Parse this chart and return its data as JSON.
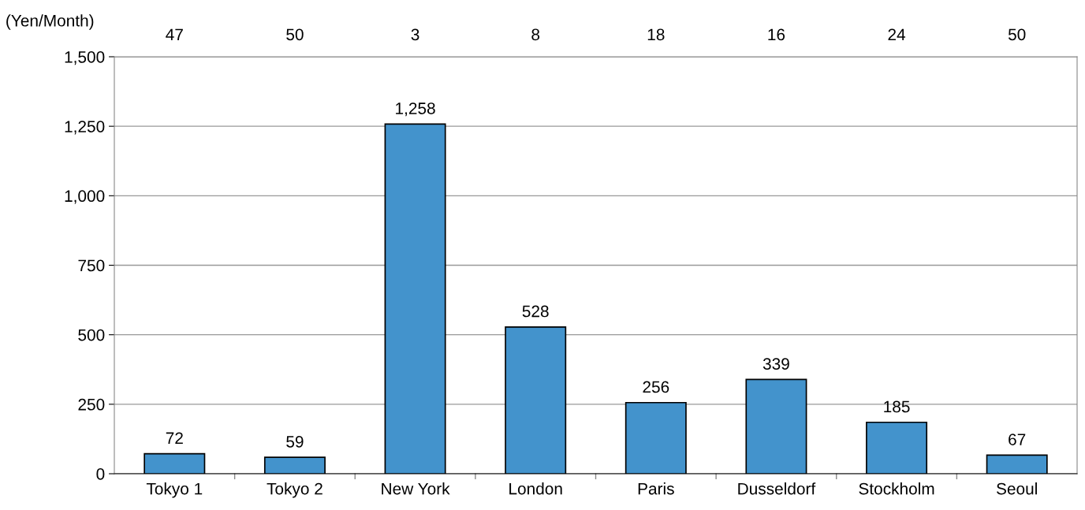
{
  "chart_data": {
    "type": "bar",
    "ylabel": "(Yen/Month)",
    "categories": [
      "Tokyo 1",
      "Tokyo 2",
      "New York",
      "London",
      "Paris",
      "Dusseldorf",
      "Stockholm",
      "Seoul"
    ],
    "values": [
      72,
      59,
      1258,
      528,
      256,
      339,
      185,
      67
    ],
    "value_labels": [
      "72",
      "59",
      "1,258",
      "528",
      "256",
      "339",
      "185",
      "67"
    ],
    "color": "#4393cc",
    "ylim": [
      0,
      1500
    ],
    "yticks": [
      0,
      250,
      500,
      750,
      {
        "value": 1000,
        "label": "1,000"
      },
      {
        "value": 1250,
        "label": "1,250"
      },
      {
        "value": 1500,
        "label": "1,500"
      }
    ],
    "grid": "y",
    "annotations": [
      "47",
      "50",
      "3",
      "8",
      "18",
      "16",
      "24",
      "50"
    ]
  }
}
